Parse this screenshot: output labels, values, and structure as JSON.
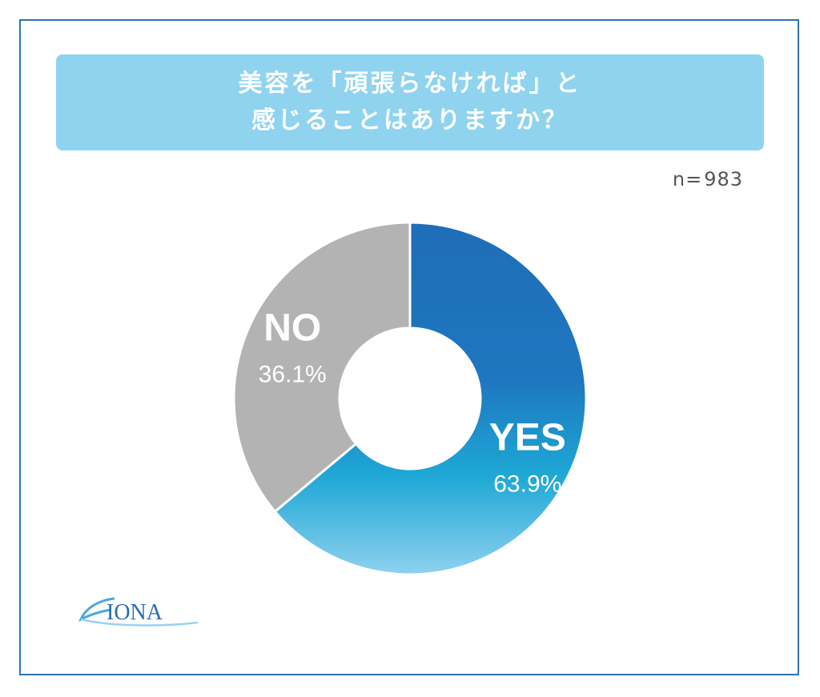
{
  "title": {
    "line1": "美容を「頑張らなければ」と",
    "line2": "感じることはありますか？"
  },
  "sample": {
    "label": "n=",
    "value": "983"
  },
  "logo_text": "IONA",
  "chart_data": {
    "type": "pie",
    "title": "美容を「頑張らなければ」と感じることはありますか？",
    "categories": [
      "YES",
      "NO"
    ],
    "values": [
      63.9,
      36.1
    ],
    "value_labels": [
      "63.9%",
      "36.1%"
    ],
    "sample_size": 983,
    "donut": true,
    "colors": {
      "YES": [
        "#1f6fb8",
        "#1ea9d6",
        "#8fd1ef"
      ],
      "NO": "#b3b3b3"
    }
  }
}
